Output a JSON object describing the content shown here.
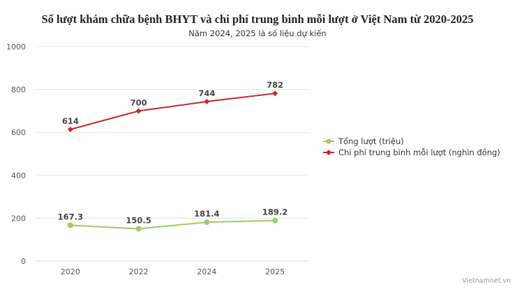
{
  "header": {
    "title": "Số lượt khám chữa bệnh BHYT và chi phí trung bình mỗi lượt ở Việt Nam từ 2020-2025",
    "subtitle": "Năm 2024, 2025 là số liệu dự kiến"
  },
  "legend": {
    "items": [
      {
        "label": "Tổng lượt (triệu)",
        "color": "#9ccc65",
        "marker": "circle"
      },
      {
        "label": "Chi phí trung bình mỗi lượt (nghìn đồng)",
        "color": "#c62828",
        "marker": "diamond"
      }
    ]
  },
  "axis": {
    "y_ticks": [
      "0",
      "200",
      "400",
      "600",
      "800",
      "1000"
    ],
    "x_ticks": [
      "2020",
      "2022",
      "2024",
      "2025"
    ]
  },
  "credits": "Vietnamnet.vn",
  "chart_data": {
    "type": "line",
    "title": "Số lượt khám chữa bệnh BHYT và chi phí trung bình mỗi lượt ở Việt Nam từ 2020-2025",
    "subtitle": "Năm 2024, 2025 là số liệu dự kiến",
    "categories": [
      "2020",
      "2022",
      "2024",
      "2025"
    ],
    "series": [
      {
        "name": "Tổng lượt (triệu)",
        "values": [
          167.3,
          150.5,
          181.4,
          189.2
        ],
        "color": "#9ccc65",
        "labels": [
          "167.3",
          "150.5",
          "181.4",
          "189.2"
        ]
      },
      {
        "name": "Chi phí trung bình mỗi lượt (nghìn đồng)",
        "values": [
          614,
          700,
          744,
          782
        ],
        "color": "#c62828",
        "labels": [
          "614",
          "700",
          "744",
          "782"
        ]
      }
    ],
    "xlabel": "",
    "ylabel": "",
    "ylim": [
      0,
      1000
    ],
    "yticks": [
      0,
      200,
      400,
      600,
      800,
      1000
    ],
    "grid": true,
    "legend_position": "right"
  }
}
